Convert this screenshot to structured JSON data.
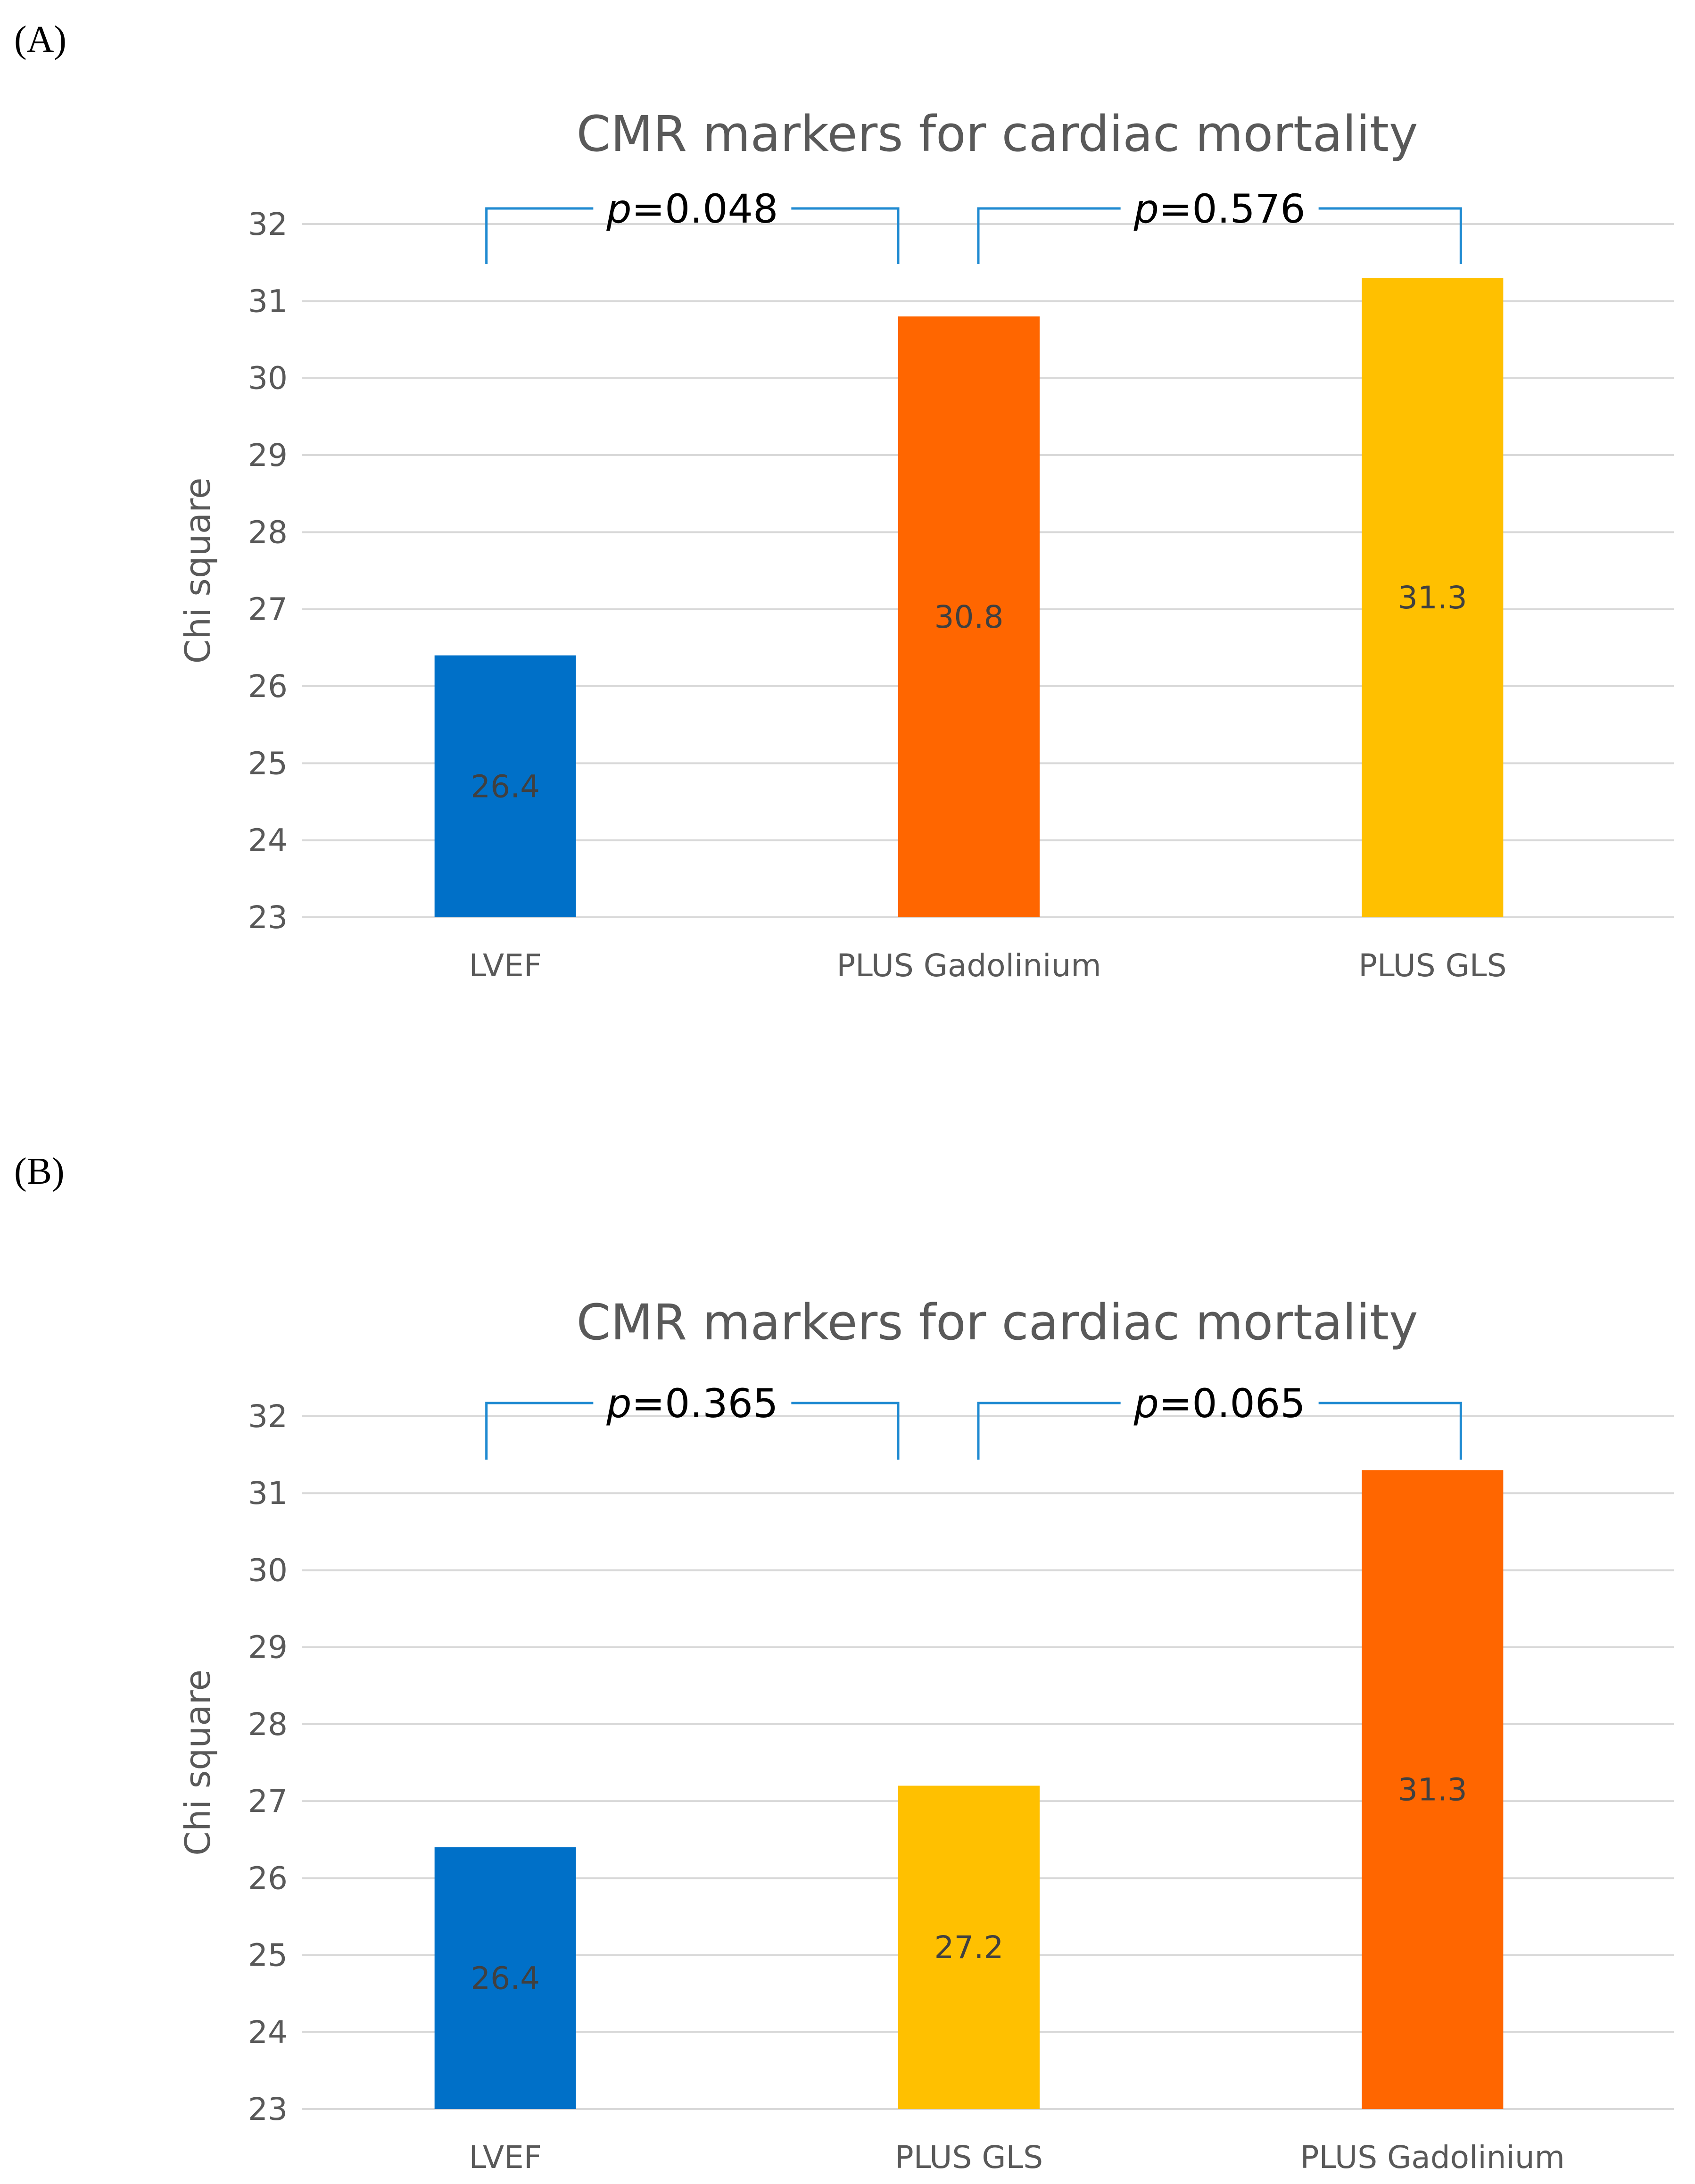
{
  "chart_data": [
    {
      "panel": "(A)",
      "type": "bar",
      "title": "CMR markers for cardiac mortality",
      "ylabel": "Chi square",
      "xlabel": "",
      "ylim": [
        23,
        32
      ],
      "yticks": [
        23,
        24,
        25,
        26,
        27,
        28,
        29,
        30,
        31,
        32
      ],
      "categories": [
        "LVEF",
        "PLUS Gadolinium",
        "PLUS GLS"
      ],
      "values": [
        26.4,
        30.8,
        31.3
      ],
      "data_labels": [
        "26.4",
        "30.8",
        "31.3"
      ],
      "colors": [
        "#0070c8",
        "#ff6600",
        "#ffc000"
      ],
      "grid": true,
      "comparisons": [
        {
          "from": 0,
          "to": 1,
          "p_symbol": "p",
          "p_text": "=0.048"
        },
        {
          "from": 1,
          "to": 2,
          "p_symbol": "p",
          "p_text": "=0.576"
        }
      ]
    },
    {
      "panel": "(B)",
      "type": "bar",
      "title": "CMR markers for cardiac mortality",
      "ylabel": "Chi square",
      "xlabel": "",
      "ylim": [
        23,
        32
      ],
      "yticks": [
        23,
        24,
        25,
        26,
        27,
        28,
        29,
        30,
        31,
        32
      ],
      "categories": [
        "LVEF",
        "PLUS GLS",
        "PLUS Gadolinium"
      ],
      "values": [
        26.4,
        27.2,
        31.3
      ],
      "data_labels": [
        "26.4",
        "27.2",
        "31.3"
      ],
      "colors": [
        "#0070c8",
        "#ffc000",
        "#ff6600"
      ],
      "grid": true,
      "comparisons": [
        {
          "from": 0,
          "to": 1,
          "p_symbol": "p",
          "p_text": "=0.365"
        },
        {
          "from": 1,
          "to": 2,
          "p_symbol": "p",
          "p_text": "=0.065"
        }
      ]
    }
  ]
}
